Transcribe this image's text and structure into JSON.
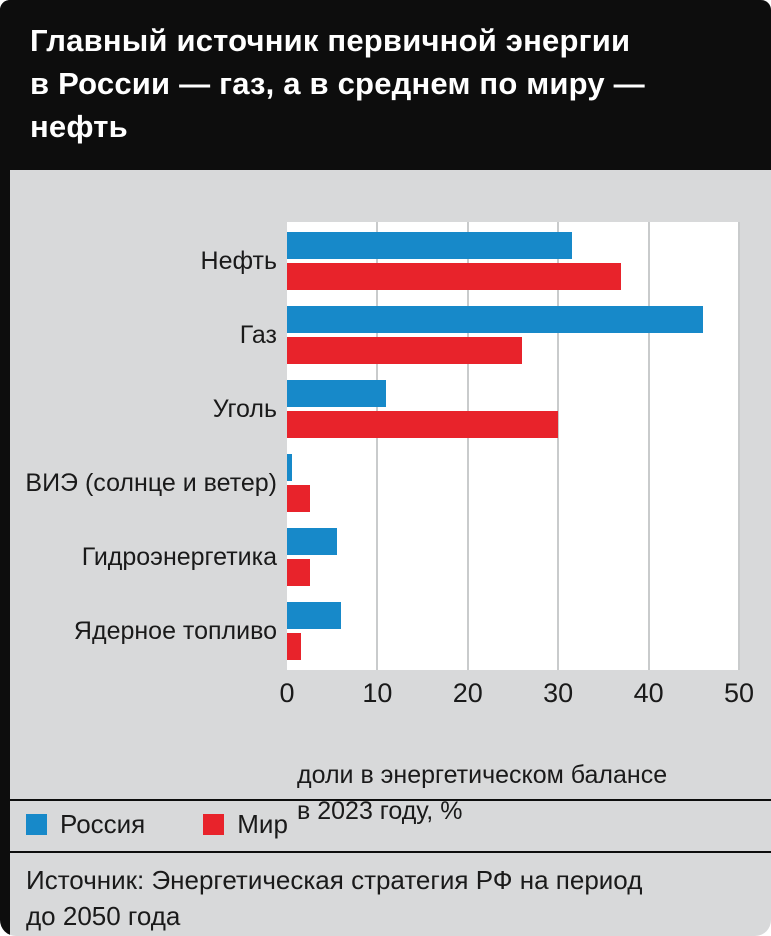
{
  "header": {
    "title_line1": "Главный источник первичной энергии",
    "title_line2": "в России — газ, а в среднем по миру — нефть"
  },
  "chart_data": {
    "type": "bar",
    "orientation": "horizontal",
    "title": "Главный источник первичной энергии в России — газ, а в среднем по миру — нефть",
    "categories": [
      "Нефть",
      "Газ",
      "Уголь",
      "ВИЭ (солнце и ветер)",
      "Гидроэнергетика",
      "Ядерное топливо"
    ],
    "series": [
      {
        "name": "Россия",
        "color": "#1789c9",
        "values": [
          31.5,
          46,
          11,
          0.5,
          5.5,
          6
        ]
      },
      {
        "name": "Мир",
        "color": "#e8232b",
        "values": [
          37,
          26,
          30,
          2.5,
          2.5,
          1.5
        ]
      }
    ],
    "xlim": [
      0,
      50
    ],
    "xticks": [
      0,
      10,
      20,
      30,
      40,
      50
    ],
    "xlabel_line1": "доли в энергетическом балансе",
    "xlabel_line2": "в 2023 году, %",
    "grid": true,
    "legend_position": "bottom-left"
  },
  "legend": {
    "items": [
      {
        "label": "Россия",
        "color": "#1789c9"
      },
      {
        "label": "Мир",
        "color": "#e8232b"
      }
    ]
  },
  "source": {
    "line1": "Источник: Энергетическая стратегия РФ на период",
    "line2": "до 2050 года"
  }
}
